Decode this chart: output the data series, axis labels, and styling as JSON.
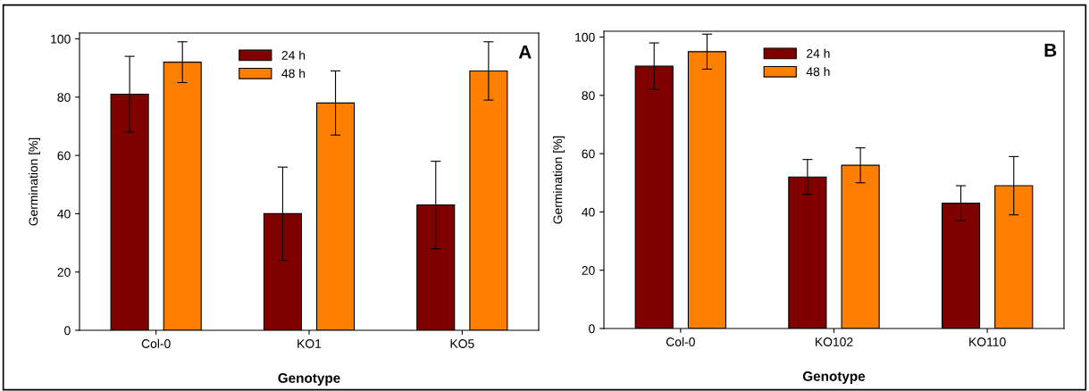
{
  "chart_data": [
    {
      "type": "bar",
      "xlabel": "Genotype",
      "ylabel": "Germination [%]",
      "categories": [
        "Col-0",
        "KO1",
        "KO5"
      ],
      "series": [
        {
          "name": "24 h",
          "color": "#800000",
          "values": [
            81,
            40,
            43
          ],
          "errors": [
            13,
            16,
            15
          ]
        },
        {
          "name": "48 h",
          "color": "#ff8000",
          "values": [
            92,
            78,
            89
          ],
          "errors": [
            7,
            11,
            10
          ]
        }
      ],
      "ylim": [
        0,
        102
      ],
      "yticks": [
        0,
        20,
        40,
        60,
        80,
        100
      ],
      "grid": false,
      "legend": "top",
      "annotations": [
        "A"
      ]
    },
    {
      "type": "bar",
      "xlabel": "Genotype",
      "ylabel": "Germination [%]",
      "categories": [
        "Col-0",
        "KO102",
        "KO110"
      ],
      "series": [
        {
          "name": "24 h",
          "color": "#800000",
          "values": [
            90,
            52,
            43
          ],
          "errors": [
            8,
            6,
            6
          ]
        },
        {
          "name": "48 h",
          "color": "#ff8000",
          "values": [
            95,
            56,
            49
          ],
          "errors": [
            6,
            6,
            10
          ]
        }
      ],
      "ylim": [
        0,
        102
      ],
      "yticks": [
        0,
        20,
        40,
        60,
        80,
        100
      ],
      "grid": false,
      "legend": "top",
      "annotations": [
        "B"
      ]
    }
  ]
}
